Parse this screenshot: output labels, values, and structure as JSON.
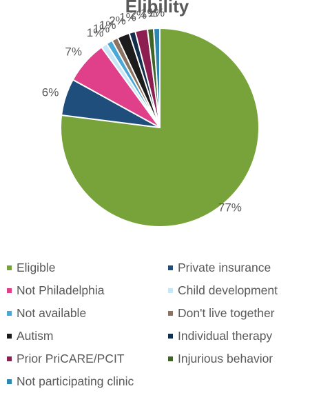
{
  "chart_data": {
    "type": "pie",
    "title": "Elibility",
    "legend_position": "bottom",
    "categories": [
      "Eligible",
      "Private insurance",
      "Not Philadelphia",
      "Child development",
      "Not available",
      "Don't live together",
      "Autism",
      "Individual therapy",
      "Prior PriCARE/PCIT",
      "Injurious behavior",
      "Not participating clinic"
    ],
    "values": [
      77,
      6,
      7,
      1,
      1,
      1,
      2,
      1,
      2,
      1,
      1
    ],
    "labels": [
      "77%",
      "6%",
      "7%",
      "1%",
      "1%",
      "1%",
      "2%",
      "1%",
      "2%",
      "1%",
      "1%"
    ],
    "colors": [
      "#77a33a",
      "#1f4e7d",
      "#e0408a",
      "#c9e6f7",
      "#4aa8d8",
      "#8a7362",
      "#1c1c1c",
      "#12304e",
      "#8c1e52",
      "#3f6426",
      "#2f86b0"
    ]
  }
}
